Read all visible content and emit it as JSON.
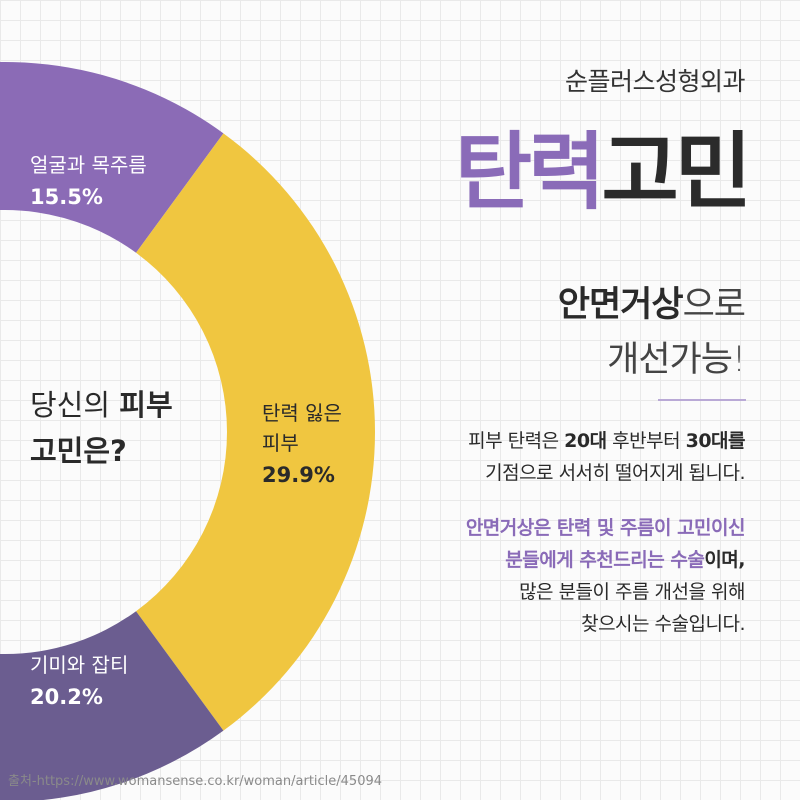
{
  "chart_data": {
    "type": "donut",
    "categories": [
      "얼굴과 목주름",
      "탄력 잃은 피부",
      "기미와 잡티"
    ],
    "values": [
      15.5,
      29.9,
      20.2
    ],
    "value_labels": [
      "15.5%",
      "29.9%",
      "20.2%"
    ],
    "colors": [
      "#8b6bb6",
      "#f0c640",
      "#6b5d90"
    ],
    "label_colors": [
      "#ffffff",
      "#2a2a2a",
      "#ffffff"
    ]
  },
  "center_text": {
    "regular": "당신의",
    "bold": "피부",
    "line2": "고민은?"
  },
  "brand": "순플러스성형외과",
  "headline": {
    "accent": "탄력",
    "main": "고민"
  },
  "subheadline": {
    "bold": "안면거상",
    "regular": "으로",
    "line2": "개선가능!"
  },
  "paragraph1": {
    "a": "피부 탄력은",
    "b": "20대",
    "c": "후반부터",
    "d": "30대를",
    "line2": "기점으로 서서히 떨어지게 됩니다."
  },
  "paragraph2": {
    "line1": "안면거상은 탄력 및 주름이 고민이신",
    "line2a": "분들에게 추천드리는 수술",
    "line2b": "이며,",
    "line3": "많은 분들이 주름 개선을 위해",
    "line4": "찾으시는 수술입니다."
  },
  "source": "출처-https://www.womansense.co.kr/woman/article/45094"
}
